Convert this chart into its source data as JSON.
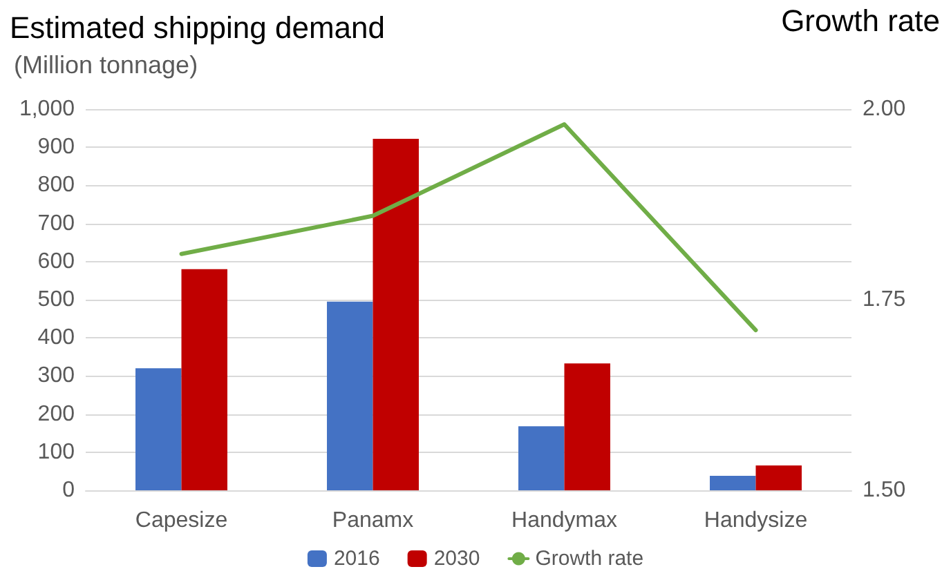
{
  "chart_data": {
    "type": "bar",
    "title": "Estimated shipping demand",
    "ylabel": "(Million tonnage)",
    "y2label": "Growth rate",
    "categories": [
      "Capesize",
      "Panamx",
      "Handymax",
      "Handysize"
    ],
    "series": [
      {
        "name": "2016",
        "color": "#4472c4",
        "values": [
          320,
          495,
          168,
          38
        ]
      },
      {
        "name": "2030",
        "color": "#c00000",
        "values": [
          580,
          922,
          333,
          65
        ]
      },
      {
        "name": "Growth rate",
        "type": "line",
        "axis": "y2",
        "color": "#70ad47",
        "values": [
          1.81,
          1.86,
          1.98,
          1.71
        ]
      }
    ],
    "ylim": [
      0,
      1000
    ],
    "yticks": [
      0,
      100,
      200,
      300,
      400,
      500,
      600,
      700,
      800,
      900,
      {
        "value": 1000,
        "label": "1,000"
      }
    ],
    "y2lim": [
      1.5,
      2.0
    ],
    "y2ticks": [
      {
        "value": 1.5,
        "label": "1.50"
      },
      {
        "value": 1.75,
        "label": "1.75"
      },
      {
        "value": 2.0,
        "label": "2.00"
      }
    ],
    "grid": "y",
    "legend": "bottom",
    "marker": "none"
  }
}
